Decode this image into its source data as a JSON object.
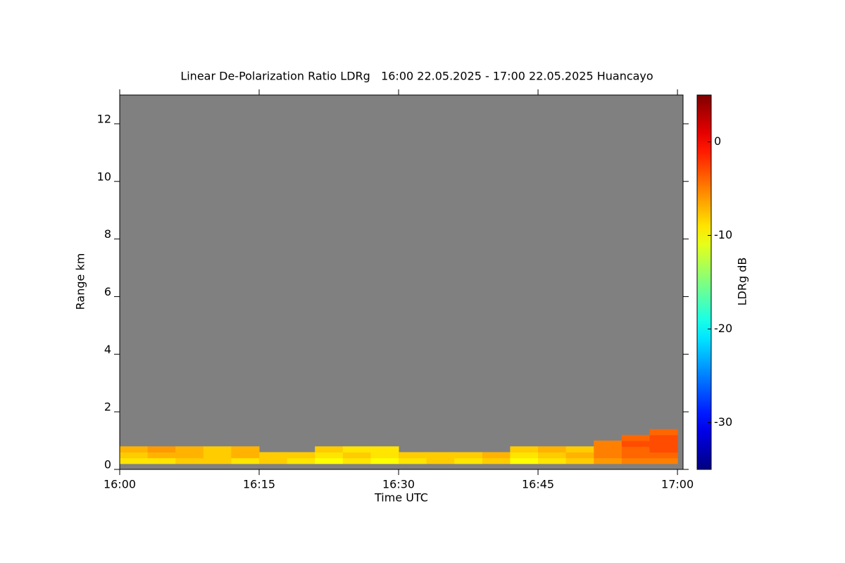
{
  "chart_data": {
    "type": "heatmap",
    "title": "Linear De-Polarization Ratio LDRg   16:00 22.05.2025 - 17:00 22.05.2025 Huancayo",
    "xlabel": "Time UTC",
    "ylabel": "Range km",
    "x": [
      1.5,
      4.5,
      7.5,
      10.5,
      13.5,
      16.5,
      19.5,
      22.5,
      25.5,
      28.5,
      31.5,
      34.5,
      37.5,
      40.5,
      43.5,
      46.5,
      49.5,
      52.5,
      55.5,
      58.5
    ],
    "y": [
      0.3,
      0.5,
      0.7,
      0.9,
      1.1,
      1.3
    ],
    "z": [
      [
        -9,
        -9,
        -8,
        -8,
        -9,
        -8,
        -9,
        -10,
        -9,
        -10,
        -9,
        -8,
        -9,
        -8,
        -10,
        -9,
        -8,
        -6,
        -5,
        -5
      ],
      [
        -8,
        -7,
        -7,
        -8,
        -7,
        -8,
        -8,
        -9,
        -8,
        -9,
        -8,
        -8,
        -8,
        -7,
        -9,
        -8,
        -7,
        -5,
        -4,
        -4
      ],
      [
        -7,
        -6,
        -7,
        -8,
        -7,
        null,
        null,
        -8,
        -9,
        -9,
        null,
        null,
        null,
        null,
        -8,
        -7,
        -8,
        -5,
        -4,
        -3
      ],
      [
        null,
        null,
        null,
        null,
        null,
        null,
        null,
        null,
        null,
        null,
        null,
        null,
        null,
        null,
        null,
        null,
        null,
        -5,
        -3,
        -3
      ],
      [
        null,
        null,
        null,
        null,
        null,
        null,
        null,
        null,
        null,
        null,
        null,
        null,
        null,
        null,
        null,
        null,
        null,
        null,
        -4,
        -3
      ],
      [
        null,
        null,
        null,
        null,
        null,
        null,
        null,
        null,
        null,
        null,
        null,
        null,
        null,
        null,
        null,
        null,
        null,
        null,
        null,
        -4
      ]
    ],
    "xlim": [
      0,
      60.6
    ],
    "xticks": [
      {
        "value": 0,
        "label": "16:00"
      },
      {
        "value": 15,
        "label": "16:15"
      },
      {
        "value": 30,
        "label": "16:30"
      },
      {
        "value": 45,
        "label": "16:45"
      },
      {
        "value": 60,
        "label": "17:00"
      }
    ],
    "ylim": [
      0,
      13
    ],
    "yticks": [
      0,
      2,
      4,
      6,
      8,
      10,
      12
    ],
    "colormap": "jet",
    "background": "#808080",
    "colorbar": {
      "label": "LDRg dB",
      "lim": [
        -35,
        5
      ],
      "ticks": [
        0,
        -10,
        -20,
        -30
      ]
    }
  }
}
